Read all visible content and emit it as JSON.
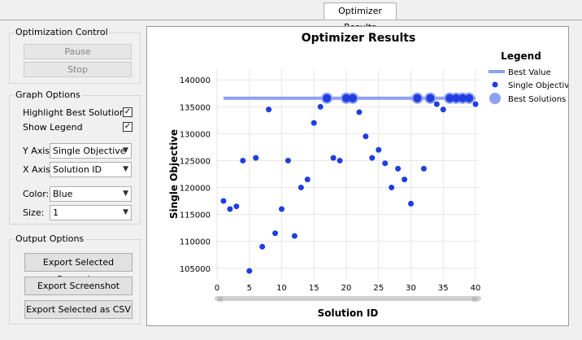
{
  "tabs": [
    {
      "label": "Optimizer Results",
      "active": true
    }
  ],
  "optimization_control": {
    "title": "Optimization Control",
    "pause_label": "Pause",
    "stop_label": "Stop"
  },
  "graph_options": {
    "title": "Graph Options",
    "highlight_best_label": "Highlight Best Solutions",
    "highlight_best_checked": true,
    "show_legend_label": "Show Legend",
    "show_legend_checked": true,
    "y_axis_label": "Y Axis:",
    "y_axis_value": "Single Objective",
    "x_axis_label": "X Axis:",
    "x_axis_value": "Solution ID",
    "color_label": "Color:",
    "color_value": "Blue",
    "size_label": "Size:",
    "size_value": "1",
    "check_glyph": "✓",
    "dropdown_icon": "chevron-down-icon"
  },
  "output_options": {
    "title": "Output Options",
    "export_scenarios_label": "Export Selected Scenarios",
    "export_screenshot_label": "Export Screenshot",
    "export_csv_label": "Export Selected as CSV"
  },
  "colors": {
    "point": "#1f3de0",
    "best_line": "#8ea0f2",
    "best_point": "#8ea0f2"
  },
  "chart_data": {
    "type": "scatter",
    "title": "Optimizer Results",
    "xlabel": "Solution ID",
    "ylabel": "Single Objective",
    "xlim": [
      0,
      40.5
    ],
    "ylim": [
      103000,
      142000
    ],
    "x_ticks": [
      0,
      5,
      10,
      15,
      20,
      25,
      30,
      35,
      40
    ],
    "y_ticks": [
      105000,
      110000,
      115000,
      120000,
      125000,
      130000,
      135000,
      140000
    ],
    "grid": true,
    "legend_position": "right",
    "legend_title": "Legend",
    "best_value": {
      "name": "Best Value",
      "y": 136600,
      "x_range": [
        1,
        40
      ]
    },
    "series": [
      {
        "name": "Single Objective",
        "x": [
          1,
          2,
          3,
          4,
          5,
          6,
          7,
          8,
          9,
          10,
          11,
          12,
          13,
          14,
          15,
          16,
          17,
          18,
          19,
          20,
          21,
          22,
          23,
          24,
          25,
          26,
          27,
          28,
          29,
          30,
          31,
          32,
          33,
          34,
          35,
          36,
          37,
          38,
          39,
          40
        ],
        "y": [
          117500,
          116000,
          116500,
          125000,
          104500,
          125500,
          109000,
          134500,
          111500,
          116000,
          125000,
          111000,
          120000,
          121500,
          132000,
          135000,
          136600,
          125500,
          125000,
          136600,
          136600,
          134000,
          129500,
          125500,
          127000,
          124500,
          120000,
          123500,
          121500,
          117000,
          136600,
          123500,
          136600,
          135500,
          134500,
          136600,
          136600,
          136600,
          136600,
          135500
        ]
      },
      {
        "name": "Best Solutions",
        "x": [
          17,
          20,
          21,
          31,
          33,
          36,
          37,
          38,
          39
        ],
        "y": [
          136600,
          136600,
          136600,
          136600,
          136600,
          136600,
          136600,
          136600,
          136600
        ]
      }
    ]
  }
}
